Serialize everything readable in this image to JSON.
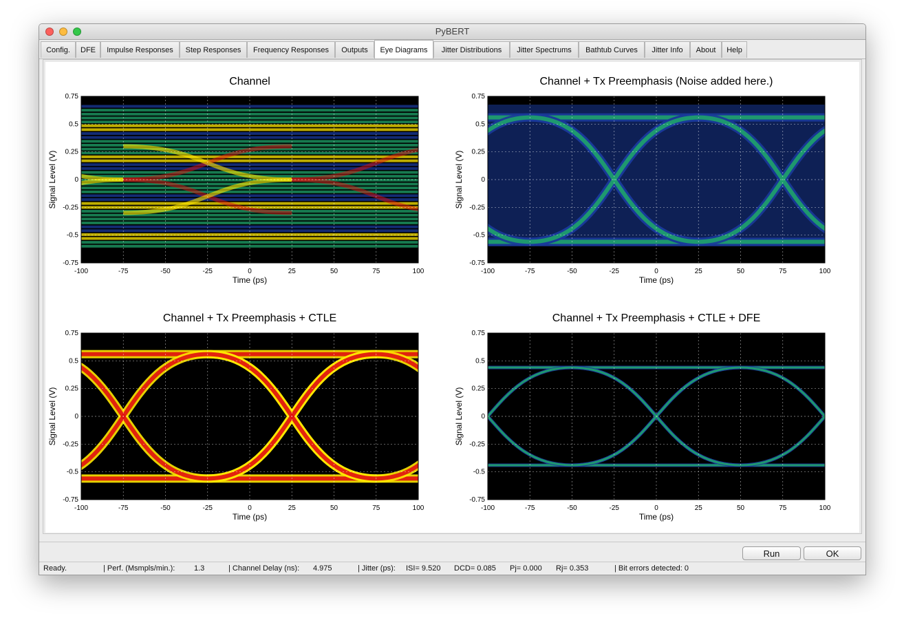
{
  "window": {
    "title": "PyBERT"
  },
  "tabs": [
    {
      "label": "Config."
    },
    {
      "label": "DFE"
    },
    {
      "label": "Impulse Responses"
    },
    {
      "label": "Step Responses"
    },
    {
      "label": "Frequency Responses"
    },
    {
      "label": "Outputs"
    },
    {
      "label": "Eye Diagrams"
    },
    {
      "label": "Jitter Distributions"
    },
    {
      "label": "Jitter Spectrums"
    },
    {
      "label": "Bathtub Curves"
    },
    {
      "label": "Jitter Info"
    },
    {
      "label": "About"
    },
    {
      "label": "Help"
    }
  ],
  "active_tab": "Eye Diagrams",
  "buttons": {
    "run": "Run",
    "ok": "OK"
  },
  "status": {
    "state": "Ready.",
    "perf_label": "| Perf. (Msmpls/min.):",
    "perf_value": "1.3",
    "delay_label": "| Channel Delay (ns):",
    "delay_value": "4.975",
    "jitter_label": "| Jitter (ps):",
    "isi": "ISI= 9.520",
    "dcd": "DCD= 0.085",
    "pj": "Pj= 0.000",
    "rj": "Rj= 0.353",
    "bit_errors": "| Bit errors detected: 0"
  },
  "colors": {
    "heat_low": "#1a3a9a",
    "heat_mid": "#1fa36a",
    "heat_high": "#ffe800",
    "heat_peak": "#e01010",
    "background": "#000000"
  },
  "chart_data": [
    {
      "type": "heatmap",
      "title": "Channel",
      "xlabel": "Time (ps)",
      "ylabel": "Signal Level (V)",
      "xlim": [
        -100,
        100
      ],
      "ylim": [
        -0.75,
        0.75
      ],
      "xticks": [
        "-100",
        "-75",
        "-50",
        "-25",
        "0",
        "25",
        "50",
        "75",
        "100"
      ],
      "yticks": [
        "0.75",
        "0.5",
        "0.25",
        "0",
        "-0.25",
        "-0.5",
        "-0.75"
      ],
      "grid": true
    },
    {
      "type": "heatmap",
      "title": "Channel + Tx Preemphasis (Noise added here.)",
      "xlabel": "Time (ps)",
      "ylabel": "Signal Level (V)",
      "xlim": [
        -100,
        100
      ],
      "ylim": [
        -0.75,
        0.75
      ],
      "xticks": [
        "-100",
        "-75",
        "-50",
        "-25",
        "0",
        "25",
        "50",
        "75",
        "100"
      ],
      "yticks": [
        "0.75",
        "0.5",
        "0.25",
        "0",
        "-0.25",
        "-0.5",
        "-0.75"
      ],
      "grid": true
    },
    {
      "type": "heatmap",
      "title": "Channel + Tx Preemphasis + CTLE",
      "xlabel": "Time (ps)",
      "ylabel": "Signal Level (V)",
      "xlim": [
        -100,
        100
      ],
      "ylim": [
        -0.75,
        0.75
      ],
      "xticks": [
        "-100",
        "-75",
        "-50",
        "-25",
        "0",
        "25",
        "50",
        "75",
        "100"
      ],
      "yticks": [
        "0.75",
        "0.5",
        "0.25",
        "0",
        "-0.25",
        "-0.5",
        "-0.75"
      ],
      "grid": true
    },
    {
      "type": "heatmap",
      "title": "Channel + Tx Preemphasis + CTLE + DFE",
      "xlabel": "Time (ps)",
      "ylabel": "Signal Level (V)",
      "xlim": [
        -100,
        100
      ],
      "ylim": [
        -0.75,
        0.75
      ],
      "xticks": [
        "-100",
        "-75",
        "-50",
        "-25",
        "0",
        "25",
        "50",
        "75",
        "100"
      ],
      "yticks": [
        "0.75",
        "0.5",
        "0.25",
        "0",
        "-0.25",
        "-0.5",
        "-0.75"
      ],
      "grid": true
    }
  ]
}
